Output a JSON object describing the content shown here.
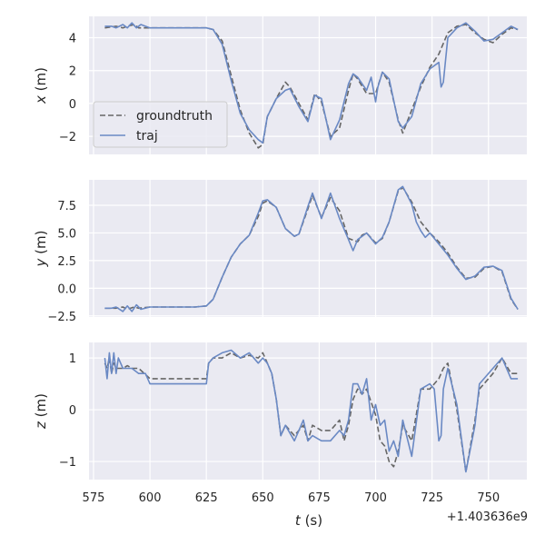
{
  "chart_data": {
    "type": "line",
    "xlabel": "t (s)",
    "x_offset_label": "+1.403636e9",
    "xlim": [
      573,
      767
    ],
    "xticks": [
      575,
      600,
      625,
      650,
      675,
      700,
      725,
      750
    ],
    "grid": true,
    "legend": {
      "placement": "left",
      "entries": [
        "groundtruth",
        "traj"
      ]
    },
    "colors": {
      "groundtruth": "#666666",
      "traj": "#6a89c4",
      "background": "#eaeaf2",
      "grid": "#ffffff"
    },
    "panels": [
      {
        "ylabel": "x (m)",
        "ylim": [
          -3.1,
          5.3
        ],
        "yticks": [
          -2,
          0,
          2,
          4
        ],
        "series": [
          {
            "name": "groundtruth",
            "style": "dashed",
            "x": [
              580,
              585,
              588,
              590,
              593,
              595,
              600,
              610,
              620,
              625,
              628,
              632,
              636,
              640,
              644,
              648,
              650,
              652,
              656,
              660,
              662,
              666,
              670,
              673,
              676,
              680,
              684,
              688,
              690,
              692,
              696,
              700,
              703,
              706,
              710,
              712,
              716,
              720,
              724,
              728,
              732,
              736,
              740,
              744,
              748,
              752,
              756,
              760,
              763
            ],
            "y": [
              4.6,
              4.7,
              4.6,
              4.7,
              4.8,
              4.6,
              4.6,
              4.6,
              4.6,
              4.6,
              4.5,
              3.8,
              1.7,
              -0.4,
              -1.8,
              -2.7,
              -2.5,
              -0.8,
              0.3,
              1.3,
              1.0,
              0.0,
              -1.0,
              0.6,
              0.1,
              -2.0,
              -1.5,
              0.8,
              1.8,
              1.5,
              0.6,
              0.6,
              1.9,
              1.3,
              -1.0,
              -1.8,
              -0.4,
              1.0,
              2.2,
              3.0,
              4.3,
              4.7,
              4.8,
              4.3,
              3.9,
              3.7,
              4.2,
              4.6,
              4.5
            ]
          },
          {
            "name": "traj",
            "style": "solid",
            "x": [
              580,
              583,
              585,
              588,
              590,
              592,
              594,
              596,
              600,
              610,
              620,
              625,
              628,
              632,
              636,
              640,
              644,
              648,
              650,
              652,
              656,
              660,
              662,
              666,
              670,
              673,
              676,
              680,
              684,
              688,
              690,
              692,
              696,
              698,
              700,
              701,
              703,
              706,
              710,
              712,
              716,
              720,
              724,
              728,
              729,
              730,
              732,
              736,
              740,
              744,
              748,
              752,
              756,
              760,
              763
            ],
            "y": [
              4.7,
              4.7,
              4.6,
              4.8,
              4.6,
              4.9,
              4.6,
              4.8,
              4.6,
              4.6,
              4.6,
              4.6,
              4.5,
              3.6,
              1.4,
              -0.6,
              -1.6,
              -2.2,
              -2.4,
              -0.8,
              0.3,
              0.8,
              0.9,
              -0.2,
              -1.1,
              0.5,
              0.3,
              -2.2,
              -1.0,
              1.2,
              1.8,
              1.6,
              0.8,
              1.6,
              0.1,
              1.0,
              1.9,
              1.5,
              -1.1,
              -1.5,
              -0.8,
              1.2,
              2.1,
              2.5,
              1.0,
              1.3,
              4.0,
              4.6,
              4.9,
              4.4,
              3.8,
              3.9,
              4.3,
              4.7,
              4.5
            ]
          }
        ]
      },
      {
        "ylabel": "y (m)",
        "ylim": [
          -2.6,
          9.8
        ],
        "yticks": [
          -2.5,
          0.0,
          2.5,
          5.0,
          7.5
        ],
        "series": [
          {
            "name": "groundtruth",
            "style": "dashed",
            "x": [
              580,
              585,
              588,
              590,
              593,
              595,
              600,
              610,
              620,
              625,
              628,
              632,
              636,
              640,
              644,
              648,
              650,
              652,
              656,
              660,
              664,
              666,
              670,
              672,
              676,
              680,
              684,
              688,
              692,
              694,
              696,
              700,
              703,
              706,
              710,
              712,
              716,
              720,
              724,
              728,
              732,
              736,
              740,
              744,
              748,
              752,
              756,
              760,
              763
            ],
            "y": [
              -1.8,
              -1.8,
              -1.7,
              -1.9,
              -1.7,
              -1.8,
              -1.7,
              -1.7,
              -1.7,
              -1.6,
              -1.0,
              1.0,
              2.8,
              4.0,
              4.8,
              6.5,
              7.7,
              7.9,
              7.3,
              5.4,
              4.7,
              4.9,
              7.2,
              8.4,
              6.4,
              8.2,
              7.0,
              4.5,
              4.2,
              4.8,
              5.0,
              4.1,
              4.5,
              6.0,
              8.8,
              9.1,
              7.8,
              6.0,
              5.0,
              4.2,
              3.2,
              1.9,
              0.9,
              1.0,
              1.8,
              2.0,
              1.5,
              -1.0,
              -1.9
            ]
          },
          {
            "name": "traj",
            "style": "solid",
            "x": [
              580,
              583,
              585,
              588,
              590,
              592,
              594,
              596,
              600,
              610,
              620,
              625,
              628,
              632,
              636,
              640,
              644,
              648,
              650,
              652,
              656,
              660,
              664,
              666,
              670,
              672,
              676,
              680,
              684,
              688,
              690,
              692,
              696,
              700,
              703,
              706,
              710,
              712,
              716,
              718,
              720,
              722,
              724,
              728,
              732,
              736,
              740,
              744,
              748,
              752,
              756,
              760,
              763
            ],
            "y": [
              -1.8,
              -1.8,
              -1.7,
              -2.1,
              -1.6,
              -2.1,
              -1.5,
              -1.9,
              -1.7,
              -1.7,
              -1.7,
              -1.6,
              -1.0,
              1.0,
              2.8,
              4.0,
              4.8,
              6.8,
              7.9,
              8.0,
              7.3,
              5.4,
              4.7,
              4.9,
              7.4,
              8.6,
              6.3,
              8.6,
              6.3,
              4.4,
              3.4,
              4.4,
              5.0,
              4.0,
              4.6,
              6.0,
              8.9,
              9.2,
              7.6,
              6.0,
              5.2,
              4.6,
              5.0,
              4.0,
              3.0,
              1.8,
              0.8,
              1.1,
              1.9,
              2.0,
              1.6,
              -0.9,
              -1.9
            ]
          }
        ]
      },
      {
        "ylabel": "z (m)",
        "ylim": [
          -1.35,
          1.3
        ],
        "yticks": [
          -1,
          0,
          1
        ],
        "series": [
          {
            "name": "groundtruth",
            "style": "dashed",
            "x": [
              580,
              581,
              582,
              583,
              584,
              585,
              586,
              588,
              590,
              592,
              595,
              600,
              605,
              610,
              615,
              620,
              625,
              626,
              628,
              632,
              636,
              640,
              644,
              648,
              650,
              652,
              654,
              656,
              658,
              660,
              664,
              668,
              670,
              672,
              676,
              680,
              684,
              686,
              688,
              690,
              692,
              694,
              696,
              700,
              702,
              704,
              706,
              708,
              710,
              712,
              716,
              720,
              724,
              726,
              728,
              730,
              732,
              736,
              740,
              744,
              746,
              748,
              752,
              756,
              760,
              763
            ],
            "y": [
              0.9,
              0.8,
              1.0,
              0.7,
              0.9,
              0.8,
              0.8,
              0.8,
              0.85,
              0.8,
              0.8,
              0.6,
              0.6,
              0.6,
              0.6,
              0.6,
              0.6,
              0.9,
              1.0,
              1.0,
              1.1,
              1.0,
              1.05,
              1.0,
              1.1,
              0.9,
              0.7,
              0.2,
              -0.5,
              -0.3,
              -0.5,
              -0.3,
              -0.6,
              -0.3,
              -0.4,
              -0.4,
              -0.2,
              -0.6,
              -0.3,
              0.2,
              0.4,
              0.3,
              0.4,
              -0.1,
              -0.6,
              -0.7,
              -1.0,
              -1.1,
              -0.8,
              -0.3,
              -0.6,
              0.4,
              0.4,
              0.5,
              0.6,
              0.8,
              0.9,
              0.0,
              -1.2,
              -0.2,
              0.4,
              0.5,
              0.7,
              1.0,
              0.7,
              0.7
            ]
          },
          {
            "name": "traj",
            "style": "solid",
            "x": [
              580,
              581,
              582,
              583,
              584,
              585,
              586,
              588,
              590,
              592,
              595,
              598,
              600,
              610,
              620,
              625,
              626,
              628,
              632,
              636,
              640,
              644,
              648,
              650,
              652,
              654,
              656,
              658,
              660,
              664,
              668,
              670,
              672,
              676,
              680,
              684,
              686,
              688,
              690,
              692,
              694,
              696,
              698,
              700,
              702,
              704,
              706,
              708,
              710,
              712,
              716,
              720,
              724,
              726,
              728,
              729,
              730,
              732,
              736,
              740,
              744,
              746,
              748,
              752,
              756,
              760,
              763
            ],
            "y": [
              1.0,
              0.6,
              1.1,
              0.7,
              1.1,
              0.7,
              1.0,
              0.8,
              0.8,
              0.8,
              0.7,
              0.7,
              0.5,
              0.5,
              0.5,
              0.5,
              0.9,
              1.0,
              1.1,
              1.15,
              1.0,
              1.1,
              0.9,
              1.0,
              0.9,
              0.7,
              0.2,
              -0.5,
              -0.3,
              -0.6,
              -0.2,
              -0.6,
              -0.5,
              -0.6,
              -0.6,
              -0.4,
              -0.5,
              -0.2,
              0.5,
              0.5,
              0.3,
              0.6,
              -0.2,
              0.1,
              -0.3,
              -0.2,
              -0.8,
              -0.6,
              -0.9,
              -0.2,
              -0.9,
              0.4,
              0.5,
              0.4,
              -0.6,
              -0.5,
              0.4,
              0.8,
              0.1,
              -1.2,
              -0.3,
              0.5,
              0.6,
              0.8,
              1.0,
              0.6,
              0.6
            ]
          }
        ]
      }
    ]
  }
}
